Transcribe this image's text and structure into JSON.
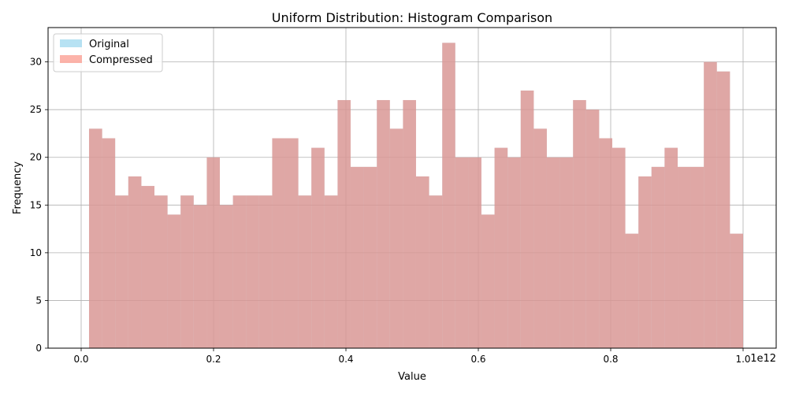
{
  "chart_data": {
    "type": "histogram",
    "title": "Uniform Distribution: Histogram Comparison",
    "xlabel": "Value",
    "ylabel": "Frequency",
    "x_offset_label": "1e12",
    "xlim": [
      -0.05,
      1.05
    ],
    "ylim": [
      0,
      33.6
    ],
    "x_scale": 1000000000000.0,
    "x_ticks": [
      0.0,
      0.2,
      0.4,
      0.6,
      0.8,
      1.0
    ],
    "x_tick_labels": [
      "0.0",
      "0.2",
      "0.4",
      "0.6",
      "0.8",
      "1.0"
    ],
    "y_ticks": [
      0,
      5,
      10,
      15,
      20,
      25,
      30
    ],
    "y_tick_labels": [
      "0",
      "5",
      "10",
      "15",
      "20",
      "25",
      "30"
    ],
    "grid": true,
    "legend_position": "top-left",
    "bin_edges": [
      0.0119,
      0.0317,
      0.0514,
      0.0712,
      0.091,
      0.1107,
      0.1305,
      0.1502,
      0.17,
      0.1898,
      0.2095,
      0.2293,
      0.249,
      0.2688,
      0.2886,
      0.3083,
      0.3281,
      0.3478,
      0.3676,
      0.3874,
      0.4071,
      0.4269,
      0.4467,
      0.4664,
      0.4862,
      0.5059,
      0.5257,
      0.5455,
      0.5652,
      0.585,
      0.6047,
      0.6245,
      0.6443,
      0.664,
      0.6838,
      0.7035,
      0.7233,
      0.7431,
      0.7628,
      0.7826,
      0.8024,
      0.8221,
      0.8419,
      0.8616,
      0.8814,
      0.9012,
      0.9209,
      0.9407,
      0.9604,
      0.9802,
      1.0
    ],
    "series": [
      {
        "name": "Original",
        "color": "#87ceeb",
        "opacity": 0.6,
        "values": [
          23,
          22,
          16,
          18,
          17,
          16,
          14,
          16,
          15,
          20,
          15,
          16,
          16,
          16,
          22,
          22,
          16,
          21,
          16,
          26,
          19,
          19,
          26,
          23,
          26,
          18,
          16,
          32,
          20,
          20,
          14,
          21,
          20,
          27,
          23,
          20,
          20,
          26,
          25,
          22,
          21,
          12,
          18,
          19,
          21,
          19,
          19,
          30,
          29,
          12
        ]
      },
      {
        "name": "Compressed",
        "color": "#fa8072",
        "opacity": 0.6,
        "values": [
          23,
          22,
          16,
          18,
          17,
          16,
          14,
          16,
          15,
          20,
          15,
          16,
          16,
          16,
          22,
          22,
          16,
          21,
          16,
          26,
          19,
          19,
          26,
          23,
          26,
          18,
          16,
          32,
          20,
          20,
          14,
          21,
          20,
          27,
          23,
          20,
          20,
          26,
          25,
          22,
          21,
          12,
          18,
          19,
          21,
          19,
          19,
          30,
          29,
          12
        ]
      }
    ]
  }
}
